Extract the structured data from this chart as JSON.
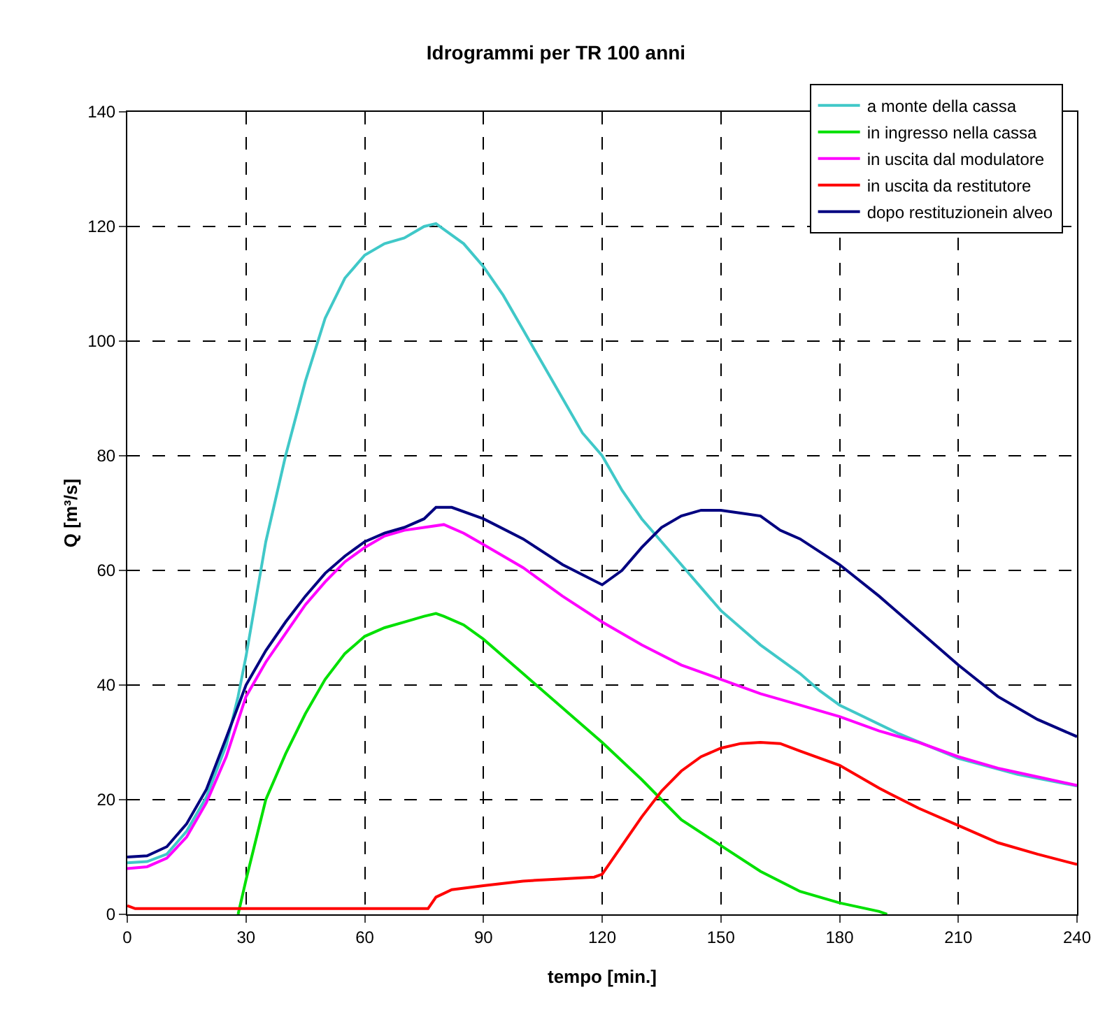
{
  "chart_data": {
    "type": "line",
    "title": "Idrogrammi per TR 100 anni",
    "xlabel": "tempo [min.]",
    "ylabel": "Q [m³/s]",
    "xlim": [
      0,
      240
    ],
    "xticks": [
      0,
      30,
      60,
      90,
      120,
      150,
      180,
      210,
      240
    ],
    "ylim": [
      0,
      140
    ],
    "yticks": [
      0,
      20,
      40,
      60,
      80,
      100,
      120,
      140
    ],
    "grid": true,
    "legend": "top right",
    "marker": "none",
    "line_style": "solid",
    "series": [
      {
        "name": "a monte della cassa",
        "color": "#40c8c8",
        "x": [
          0,
          5,
          10,
          15,
          20,
          25,
          28,
          30,
          35,
          40,
          45,
          50,
          55,
          60,
          65,
          70,
          75,
          78,
          80,
          85,
          90,
          95,
          100,
          105,
          110,
          115,
          120,
          125,
          130,
          135,
          140,
          145,
          150,
          155,
          160,
          165,
          170,
          175,
          180,
          195,
          210,
          225,
          240
        ],
        "values": [
          9,
          9.2,
          10.5,
          14.5,
          20.5,
          29.5,
          38,
          45,
          65,
          80,
          93,
          104,
          111,
          115,
          117,
          118,
          120,
          120.5,
          119.5,
          117,
          113,
          108,
          102,
          96,
          90,
          84,
          80,
          74,
          69,
          65,
          61,
          57,
          53,
          50,
          47,
          44.5,
          42,
          39,
          36.5,
          31.5,
          27.2,
          24.4,
          22.4
        ]
      },
      {
        "name": "in ingresso nella cassa",
        "color": "#00e000",
        "x": [
          28,
          30,
          35,
          40,
          45,
          50,
          55,
          60,
          65,
          70,
          75,
          78,
          80,
          85,
          90,
          95,
          100,
          110,
          120,
          130,
          135,
          140,
          150,
          160,
          170,
          180,
          190,
          192
        ],
        "values": [
          0,
          6,
          20,
          28,
          35,
          41,
          45.5,
          48.5,
          50,
          51,
          52,
          52.5,
          52,
          50.5,
          48,
          45,
          42,
          36,
          30,
          23.5,
          20,
          16.5,
          12,
          7.5,
          4,
          2,
          0.5,
          0
        ]
      },
      {
        "name": "in uscita dal modulatore",
        "color": "#ff00ff",
        "x": [
          0,
          5,
          10,
          15,
          20,
          25,
          30,
          35,
          40,
          45,
          50,
          55,
          60,
          65,
          70,
          75,
          80,
          85,
          90,
          100,
          110,
          120,
          130,
          140,
          150,
          160,
          170,
          180,
          190,
          200,
          210,
          220,
          230,
          240
        ],
        "values": [
          8,
          8.3,
          9.8,
          13.5,
          19.5,
          27.5,
          38,
          44,
          49,
          54,
          58,
          61.5,
          64,
          66,
          67,
          67.5,
          68,
          66.5,
          64.5,
          60.5,
          55.5,
          51,
          47,
          43.5,
          41,
          38.5,
          36.5,
          34.5,
          32,
          30,
          27.5,
          25.5,
          24,
          22.5
        ]
      },
      {
        "name": "in uscita da restitutore",
        "color": "#ff0000",
        "x": [
          0,
          2,
          76,
          78,
          82,
          90,
          100,
          110,
          118,
          120,
          125,
          130,
          135,
          140,
          145,
          150,
          155,
          160,
          165,
          170,
          180,
          190,
          200,
          210,
          220,
          230,
          240
        ],
        "values": [
          1.5,
          1,
          1,
          3,
          4.3,
          5,
          5.8,
          6.2,
          6.5,
          7,
          12,
          17,
          21.5,
          25,
          27.5,
          29,
          29.8,
          30,
          29.8,
          28.5,
          26,
          22,
          18.5,
          15.5,
          12.5,
          10.5,
          8.7
        ]
      },
      {
        "name": "dopo restituzionein alveo",
        "color": "#000080",
        "x": [
          0,
          5,
          10,
          15,
          20,
          25,
          30,
          35,
          40,
          45,
          50,
          55,
          60,
          65,
          70,
          75,
          78,
          82,
          90,
          100,
          110,
          120,
          125,
          130,
          135,
          140,
          145,
          150,
          155,
          160,
          165,
          170,
          180,
          190,
          200,
          210,
          220,
          230,
          240
        ],
        "values": [
          10,
          10.2,
          11.8,
          15.8,
          21.8,
          30.8,
          40,
          46,
          51,
          55.5,
          59.5,
          62.5,
          65,
          66.5,
          67.5,
          69,
          71,
          71,
          69,
          65.5,
          61,
          57.5,
          60,
          64,
          67.5,
          69.5,
          70.5,
          70.5,
          70,
          69.5,
          67,
          65.5,
          61,
          55.5,
          49.5,
          43.5,
          38,
          34,
          31
        ]
      }
    ]
  }
}
